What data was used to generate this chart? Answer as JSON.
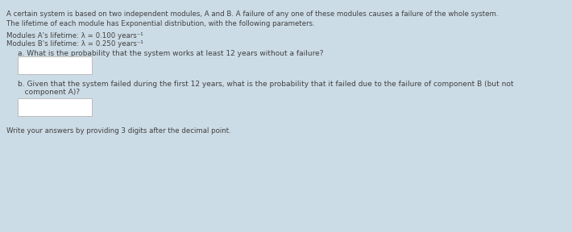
{
  "background_color": "#ccdce6",
  "text_color": "#404040",
  "title_line1": "A certain system is based on two independent modules, A and B. A failure of any one of these modules causes a failure of the whole system.",
  "title_line2": "The lifetime of each module has Exponential distribution, with the following parameters.",
  "param_line1": "Modules A's lifetime: λ = 0.100 years⁻¹",
  "param_line2": "Modules B's lifetime: λ = 0.250 years⁻¹",
  "question_a": "a. What is the probability that the system works at least 12 years without a failure?",
  "question_b1": "b. Given that the system failed during the first 12 years, what is the probability that it failed due to the failure of component B (but not",
  "question_b2": "   component A)?",
  "footer": "Write your answers by providing 3 digits after the decimal point.",
  "box_color": "#ffffff",
  "box_border_color": "#bbbbbb",
  "font_size": 6.2,
  "font_size_q": 6.5
}
